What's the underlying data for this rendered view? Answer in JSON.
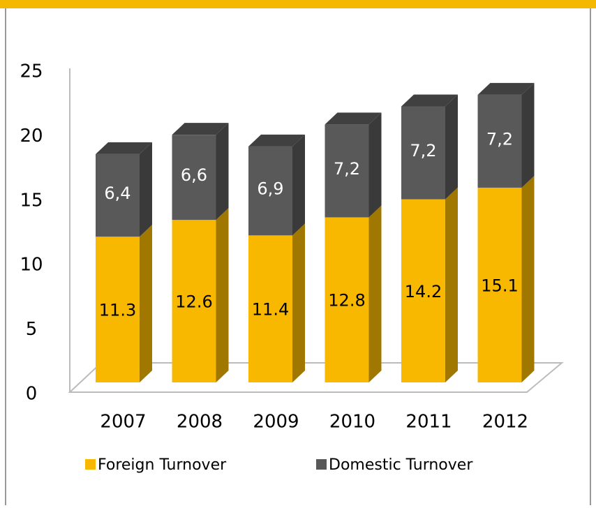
{
  "chart_data": {
    "type": "bar3d_stacked",
    "categories": [
      "2007",
      "2008",
      "2009",
      "2010",
      "2011",
      "2012"
    ],
    "series": [
      {
        "name": "Foreign Turnover",
        "color": "#f9b800",
        "values": [
          11.3,
          12.6,
          11.4,
          12.8,
          14.2,
          15.1
        ]
      },
      {
        "name": "Domestic Turnover",
        "color": "#595959",
        "values": [
          6.4,
          6.6,
          6.9,
          7.2,
          7.2,
          7.2
        ],
        "value_labels": [
          "6,4",
          "6,6",
          "6,9",
          "7,2",
          "7,2",
          "7,2"
        ]
      }
    ],
    "ylim": [
      0,
      25
    ],
    "yticks": [
      0,
      5,
      10,
      15,
      20,
      25
    ],
    "legend": "bottom"
  }
}
